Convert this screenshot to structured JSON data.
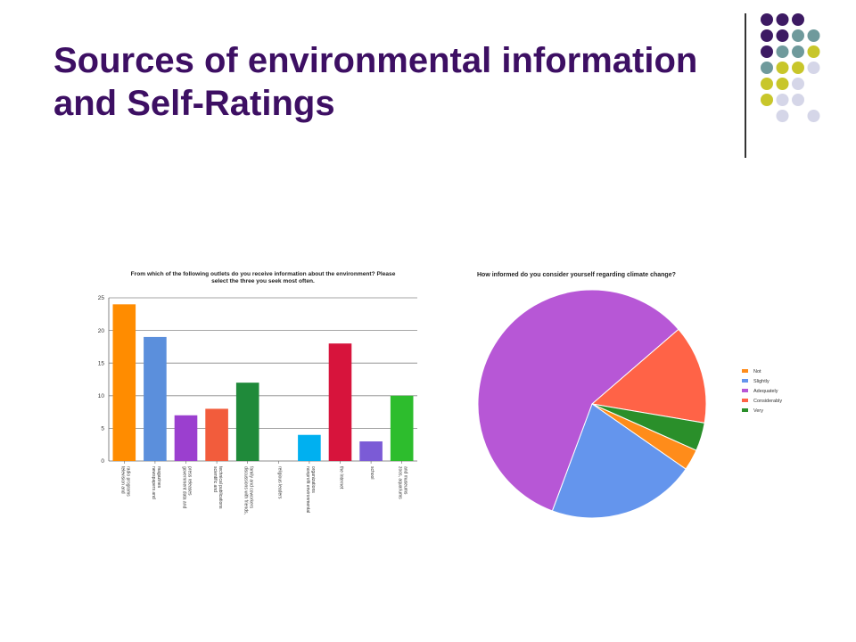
{
  "slide": {
    "title_line1": "Sources of environmental information",
    "title_line2": "and Self-Ratings"
  },
  "decor": {
    "dot_colors": {
      "purple": "#3d1a63",
      "teal": "#6f9a9c",
      "yellow": "#c8c62a",
      "lavender": "#d5d6e8"
    }
  },
  "chart_data": [
    {
      "type": "bar",
      "title": "From which of the following outlets do you receive information about the environment? Please select the three you seek most often.",
      "categories": [
        "television and radio programs",
        "newspapers and magazines",
        "government data and press releases",
        "scientific and technical publications",
        "discussions with friends, family and coworkers",
        "religious leaders",
        "nonprofit environmental organizations",
        "the Internet",
        "school",
        "zoos, aquariums and museums"
      ],
      "values": [
        24,
        19,
        7,
        8,
        12,
        0,
        4,
        18,
        3,
        10
      ],
      "colors": [
        "#ff8c00",
        "#5b8fdc",
        "#9b3fcf",
        "#f25c3c",
        "#1f8a3a",
        "#cccccc",
        "#00b0f0",
        "#d7143c",
        "#7b5bd6",
        "#2dbd2d"
      ],
      "ylim": [
        0,
        25
      ],
      "yticks": [
        0,
        5,
        10,
        15,
        20,
        25
      ],
      "grid": true,
      "xlabel": "",
      "ylabel": ""
    },
    {
      "type": "pie",
      "title": "How informed do you consider yourself regarding climate change?",
      "labels": [
        "Not",
        "Slightly",
        "Adequately",
        "Considerably",
        "Very"
      ],
      "values": [
        3,
        21,
        58,
        14,
        4
      ],
      "colors": [
        "#ff8c1a",
        "#6495ed",
        "#b757d6",
        "#ff6347",
        "#2a8f2a"
      ],
      "legend": "right"
    }
  ]
}
